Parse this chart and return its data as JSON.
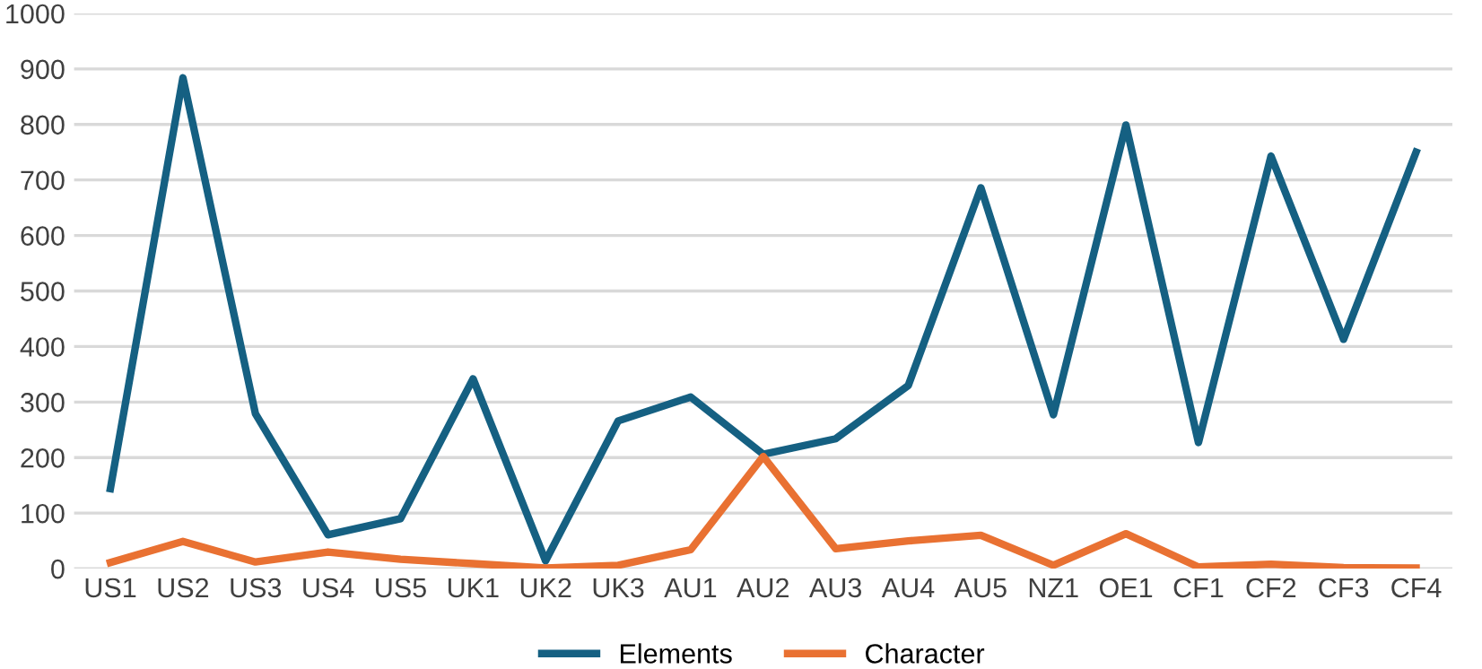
{
  "chart_data": {
    "type": "line",
    "categories": [
      "US1",
      "US2",
      "US3",
      "US4",
      "US5",
      "UK1",
      "UK2",
      "UK3",
      "AU1",
      "AU2",
      "AU3",
      "AU4",
      "AU5",
      "NZ1",
      "OE1",
      "CF1",
      "CF2",
      "CF3",
      "CF4"
    ],
    "series": [
      {
        "name": "Elements",
        "color": "#156082",
        "values": [
          144,
          884,
          279,
          61,
          90,
          342,
          14,
          266,
          309,
          206,
          234,
          330,
          686,
          277,
          799,
          227,
          743,
          413,
          750
        ]
      },
      {
        "name": "Character",
        "color": "#e97132",
        "values": [
          11,
          49,
          12,
          30,
          17,
          9,
          1,
          6,
          34,
          202,
          36,
          50,
          60,
          6,
          63,
          3,
          8,
          2,
          1
        ]
      }
    ],
    "ylim": [
      0,
      1000
    ],
    "yticks": [
      0,
      100,
      200,
      300,
      400,
      500,
      600,
      700,
      800,
      900,
      1000
    ],
    "grid": "y",
    "legend": "bottom",
    "marker": "none",
    "line_style": "solid"
  }
}
